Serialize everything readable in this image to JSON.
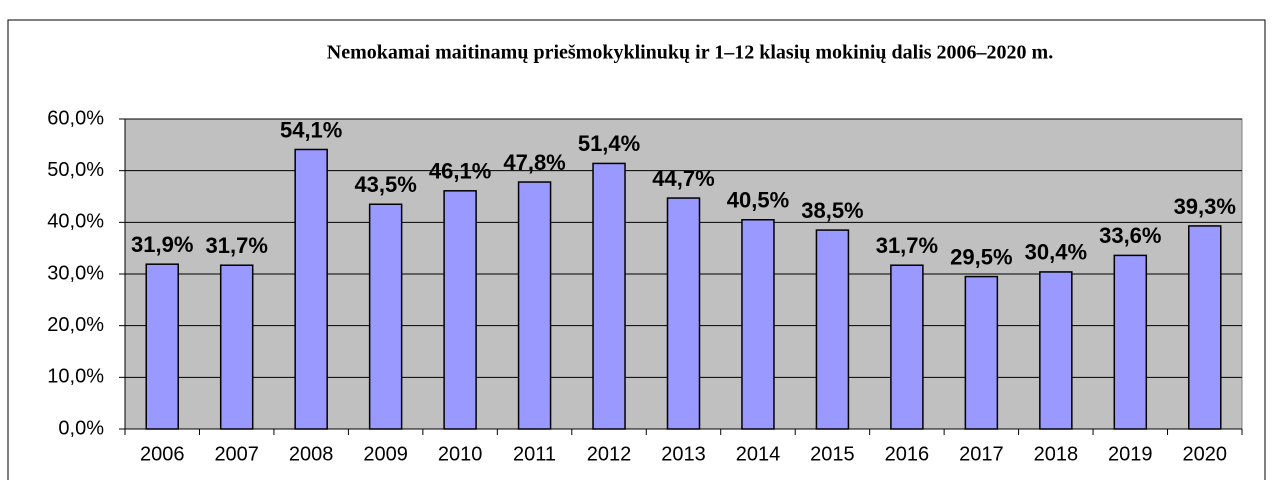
{
  "chart_data": {
    "type": "bar",
    "title": "Nemokamai maitinamų priešmokyklinukų ir 1–12 klasių mokinių dalis 2006–2020 m.",
    "categories": [
      "2006",
      "2007",
      "2008",
      "2009",
      "2010",
      "2011",
      "2012",
      "2013",
      "2014",
      "2015",
      "2016",
      "2017",
      "2018",
      "2019",
      "2020"
    ],
    "values": [
      31.9,
      31.7,
      54.1,
      43.5,
      46.1,
      47.8,
      51.4,
      44.7,
      40.5,
      38.5,
      31.7,
      29.5,
      30.4,
      33.6,
      39.3
    ],
    "value_labels": [
      "31,9%",
      "31,7%",
      "54,1%",
      "43,5%",
      "46,1%",
      "47,8%",
      "51,4%",
      "44,7%",
      "40,5%",
      "38,5%",
      "31,7%",
      "29,5%",
      "30,4%",
      "33,6%",
      "39,3%"
    ],
    "color": "#9999ff",
    "ylim": [
      0,
      60
    ],
    "yticks": [
      {
        "value": 0,
        "label": "0,0%"
      },
      {
        "value": 10,
        "label": "10,0%"
      },
      {
        "value": 20,
        "label": "20,0%"
      },
      {
        "value": 30,
        "label": "30,0%"
      },
      {
        "value": 40,
        "label": "40,0%"
      },
      {
        "value": 50,
        "label": "50,0%"
      },
      {
        "value": 60,
        "label": "60,0%"
      }
    ],
    "grid": true
  }
}
